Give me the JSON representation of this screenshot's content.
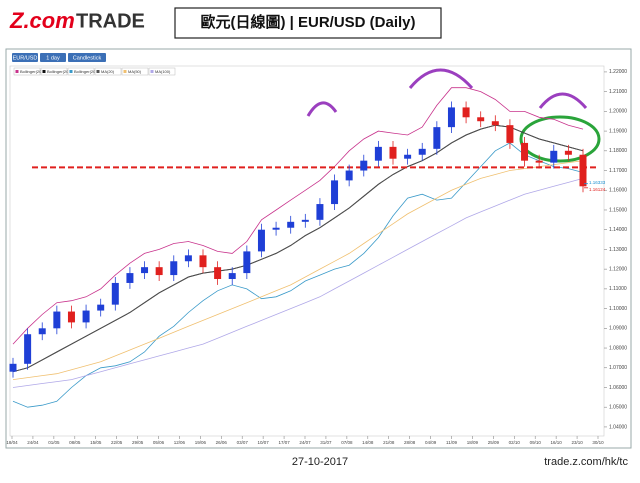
{
  "header": {
    "logo_brand": "Z.com",
    "logo_product": "TRADE",
    "title": "歐元(日線圖) | EUR/USD (Daily)"
  },
  "footer": {
    "date": "27-10-2017",
    "url": "trade.z.com/hk/tc"
  },
  "chart_data": {
    "type": "candlestick",
    "toolbar": [
      "EUR/USD",
      "1 day",
      "Candlestick"
    ],
    "up_color": "#1f3fd6",
    "down_color": "#e0201e",
    "open": [
      1.068,
      1.072,
      1.087,
      1.09,
      1.0985,
      1.093,
      1.099,
      1.102,
      1.113,
      1.118,
      1.121,
      1.117,
      1.124,
      1.127,
      1.121,
      1.115,
      1.118,
      1.129,
      1.14,
      1.141,
      1.144,
      1.145,
      1.153,
      1.165,
      1.17,
      1.175,
      1.182,
      1.176,
      1.178,
      1.181,
      1.192,
      1.202,
      1.197,
      1.195,
      1.193,
      1.184,
      1.175,
      1.174,
      1.18,
      1.178
    ],
    "high": [
      1.075,
      1.09,
      1.093,
      1.1015,
      1.1015,
      1.102,
      1.105,
      1.116,
      1.121,
      1.124,
      1.124,
      1.127,
      1.13,
      1.13,
      1.124,
      1.121,
      1.132,
      1.143,
      1.144,
      1.147,
      1.148,
      1.156,
      1.168,
      1.173,
      1.178,
      1.185,
      1.185,
      1.181,
      1.184,
      1.195,
      1.205,
      1.205,
      1.2,
      1.198,
      1.196,
      1.187,
      1.178,
      1.183,
      1.183,
      1.181
    ],
    "low": [
      1.065,
      1.069,
      1.084,
      1.087,
      1.09,
      1.09,
      1.096,
      1.099,
      1.11,
      1.115,
      1.114,
      1.114,
      1.121,
      1.118,
      1.112,
      1.112,
      1.115,
      1.126,
      1.137,
      1.138,
      1.141,
      1.142,
      1.15,
      1.162,
      1.167,
      1.172,
      1.173,
      1.173,
      1.175,
      1.178,
      1.189,
      1.194,
      1.192,
      1.19,
      1.181,
      1.172,
      1.171,
      1.171,
      1.175,
      1.159
    ],
    "close": [
      1.072,
      1.087,
      1.09,
      1.0985,
      1.093,
      1.099,
      1.102,
      1.113,
      1.118,
      1.121,
      1.117,
      1.124,
      1.127,
      1.121,
      1.115,
      1.118,
      1.129,
      1.14,
      1.141,
      1.144,
      1.145,
      1.153,
      1.165,
      1.17,
      1.175,
      1.182,
      1.176,
      1.178,
      1.181,
      1.192,
      1.202,
      1.197,
      1.195,
      1.193,
      1.184,
      1.175,
      1.174,
      1.18,
      1.178,
      1.162
    ],
    "series": [
      {
        "name": "Bollinger(20)",
        "color": "#c8338c",
        "values": [
          1.082,
          1.09,
          1.097,
          1.103,
          1.104,
          1.106,
          1.11,
          1.117,
          1.123,
          1.128,
          1.13,
          1.133,
          1.134,
          1.132,
          1.129,
          1.128,
          1.134,
          1.145,
          1.15,
          1.155,
          1.16,
          1.165,
          1.172,
          1.18,
          1.186,
          1.19,
          1.189,
          1.188,
          1.192,
          1.203,
          1.212,
          1.212,
          1.21,
          1.206,
          1.2,
          1.2,
          1.197,
          1.196,
          1.193,
          1.191
        ]
      },
      {
        "name": "Bollinger(20)",
        "color": "#111111",
        "values": [
          1.068,
          1.07,
          1.074,
          1.078,
          1.082,
          1.086,
          1.09,
          1.094,
          1.098,
          1.103,
          1.108,
          1.112,
          1.116,
          1.118,
          1.119,
          1.12,
          1.122,
          1.125,
          1.128,
          1.132,
          1.137,
          1.141,
          1.146,
          1.151,
          1.157,
          1.163,
          1.168,
          1.172,
          1.175,
          1.179,
          1.184,
          1.188,
          1.191,
          1.193,
          1.192,
          1.189,
          1.186,
          1.184,
          1.182,
          1.18
        ]
      },
      {
        "name": "Bollinger(20)",
        "color": "#3a9ac9",
        "values": [
          1.053,
          1.05,
          1.051,
          1.053,
          1.06,
          1.066,
          1.07,
          1.071,
          1.073,
          1.078,
          1.086,
          1.091,
          1.098,
          1.104,
          1.109,
          1.112,
          1.11,
          1.105,
          1.106,
          1.109,
          1.114,
          1.117,
          1.12,
          1.122,
          1.128,
          1.136,
          1.147,
          1.156,
          1.158,
          1.155,
          1.156,
          1.164,
          1.172,
          1.18,
          1.184,
          1.178,
          1.175,
          1.172,
          1.171,
          1.169
        ]
      },
      {
        "name": "MA(20)",
        "color": "#555555",
        "values": [
          1.068,
          1.07,
          1.074,
          1.078,
          1.082,
          1.086,
          1.09,
          1.094,
          1.098,
          1.103,
          1.108,
          1.112,
          1.116,
          1.118,
          1.119,
          1.12,
          1.122,
          1.125,
          1.128,
          1.132,
          1.137,
          1.141,
          1.146,
          1.151,
          1.157,
          1.163,
          1.168,
          1.172,
          1.175,
          1.179,
          1.184,
          1.188,
          1.191,
          1.193,
          1.192,
          1.189,
          1.186,
          1.184,
          1.182,
          1.18
        ]
      },
      {
        "name": "MA(50)",
        "color": "#f0c070",
        "values": [
          1.064,
          1.065,
          1.066,
          1.067,
          1.069,
          1.071,
          1.073,
          1.076,
          1.079,
          1.082,
          1.085,
          1.088,
          1.091,
          1.094,
          1.097,
          1.1,
          1.103,
          1.106,
          1.109,
          1.112,
          1.116,
          1.12,
          1.124,
          1.128,
          1.133,
          1.138,
          1.143,
          1.148,
          1.152,
          1.156,
          1.16,
          1.163,
          1.166,
          1.168,
          1.17,
          1.171,
          1.172,
          1.173,
          1.174,
          1.175
        ]
      },
      {
        "name": "MA(100)",
        "color": "#b0a8e8",
        "values": [
          1.06,
          1.061,
          1.062,
          1.063,
          1.064,
          1.066,
          1.068,
          1.07,
          1.072,
          1.074,
          1.076,
          1.078,
          1.08,
          1.082,
          1.085,
          1.088,
          1.091,
          1.094,
          1.097,
          1.1,
          1.103,
          1.106,
          1.11,
          1.114,
          1.118,
          1.122,
          1.126,
          1.13,
          1.134,
          1.138,
          1.142,
          1.146,
          1.149,
          1.152,
          1.155,
          1.158,
          1.16,
          1.162,
          1.164,
          1.166
        ]
      }
    ],
    "ylim": [
      1.0354,
      1.223
    ],
    "yticks": [
      {
        "value": 1.04,
        "label": "1.04000"
      },
      {
        "value": 1.05,
        "label": "1.05000"
      },
      {
        "value": 1.06,
        "label": "1.06000"
      },
      {
        "value": 1.07,
        "label": "1.07000"
      },
      {
        "value": 1.08,
        "label": "1.08000"
      },
      {
        "value": 1.09,
        "label": "1.09000"
      },
      {
        "value": 1.1,
        "label": "1.10000"
      },
      {
        "value": 1.11,
        "label": "1.11000"
      },
      {
        "value": 1.12,
        "label": "1.12000"
      },
      {
        "value": 1.13,
        "label": "1.13000"
      },
      {
        "value": 1.14,
        "label": "1.14000"
      },
      {
        "value": 1.15,
        "label": "1.15000"
      },
      {
        "value": 1.16,
        "label": "1.16000"
      },
      {
        "value": 1.17,
        "label": "1.17000"
      },
      {
        "value": 1.18,
        "label": "1.18000"
      },
      {
        "value": 1.19,
        "label": "1.19000"
      },
      {
        "value": 1.2,
        "label": "1.20000"
      },
      {
        "value": 1.21,
        "label": "1.21000"
      },
      {
        "value": 1.22,
        "label": "1.22000"
      }
    ],
    "xtick_labels": [
      "18/04",
      "24/04",
      "01/05",
      "08/05",
      "15/05",
      "22/05",
      "29/05",
      "05/06",
      "12/06",
      "19/06",
      "26/06",
      "03/07",
      "10/07",
      "17/07",
      "24/07",
      "31/07",
      "07/08",
      "14/08",
      "21/08",
      "28/08",
      "04/09",
      "11/09",
      "18/09",
      "25/09",
      "02/10",
      "09/10",
      "16/10",
      "23/10",
      "30/10"
    ],
    "grid": false,
    "support_level": 1.1716,
    "price_labels": [
      {
        "value": 1.16333,
        "label": "1.16333",
        "color": "#1a8fd0"
      },
      {
        "value": 1.16124,
        "label": "1.16124",
        "color": "#e0201e"
      }
    ]
  }
}
